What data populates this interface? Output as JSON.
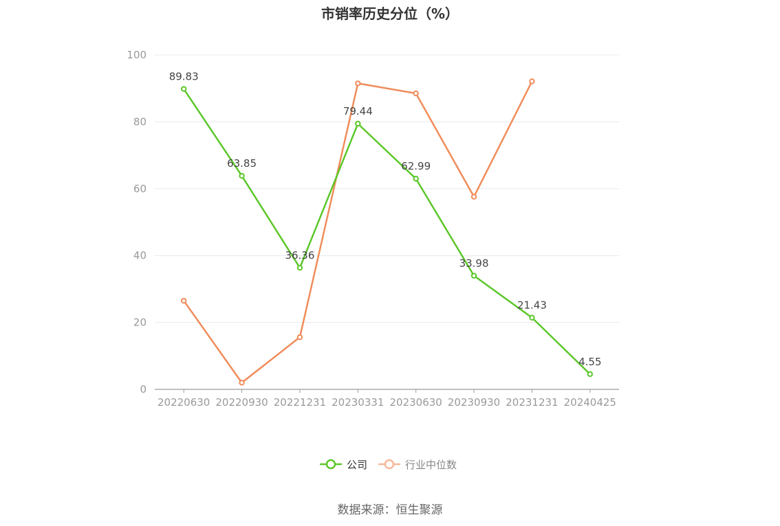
{
  "chart_data": {
    "type": "line",
    "title": "市销率历史分位（%）",
    "categories": [
      "20220630",
      "20220930",
      "20221231",
      "20230331",
      "20230630",
      "20230930",
      "20231231",
      "20240425"
    ],
    "ylim": [
      0,
      100
    ],
    "yticks": [
      0,
      20,
      40,
      60,
      80,
      100
    ],
    "grid": true,
    "legend_position": "bottom-center",
    "series": [
      {
        "name": "公司",
        "color": "#5cc72a",
        "values": [
          89.83,
          63.85,
          36.36,
          79.44,
          62.99,
          33.98,
          21.43,
          4.55
        ],
        "labels": [
          "89.83",
          "63.85",
          "36.36",
          "79.44",
          "62.99",
          "33.98",
          "21.43",
          "4.55"
        ]
      },
      {
        "name": "行业中位数",
        "color": "#f08c5a",
        "legend_color": "#f7b89a",
        "values": [
          26.5,
          2.0,
          15.6,
          91.5,
          88.5,
          57.6,
          92.1,
          null
        ]
      }
    ]
  },
  "source": "数据来源：恒生聚源"
}
